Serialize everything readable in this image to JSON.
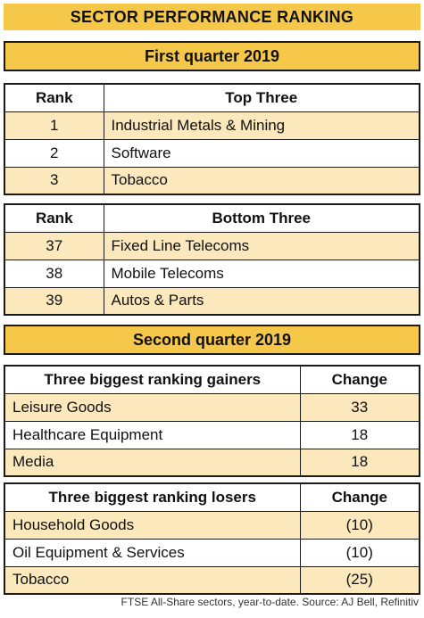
{
  "title": "SECTOR PERFORMANCE RANKING",
  "q1": {
    "heading": "First quarter 2019",
    "top": {
      "col_rank": "Rank",
      "col_label": "Top Three",
      "rows": [
        {
          "rank": "1",
          "sector": "Industrial Metals & Mining"
        },
        {
          "rank": "2",
          "sector": "Software"
        },
        {
          "rank": "3",
          "sector": "Tobacco"
        }
      ]
    },
    "bottom": {
      "col_rank": "Rank",
      "col_label": "Bottom Three",
      "rows": [
        {
          "rank": "37",
          "sector": "Fixed Line Telecoms"
        },
        {
          "rank": "38",
          "sector": "Mobile Telecoms"
        },
        {
          "rank": "39",
          "sector": "Autos & Parts"
        }
      ]
    }
  },
  "q2": {
    "heading": "Second quarter 2019",
    "gainers": {
      "col_label": "Three biggest ranking gainers",
      "col_change": "Change",
      "rows": [
        {
          "sector": "Leisure Goods",
          "change": "33"
        },
        {
          "sector": "Healthcare Equipment",
          "change": "18"
        },
        {
          "sector": "Media",
          "change": "18"
        }
      ]
    },
    "losers": {
      "col_label": "Three biggest ranking losers",
      "col_change": "Change",
      "rows": [
        {
          "sector": "Household Goods",
          "change": "(10)"
        },
        {
          "sector": "Oil Equipment & Services",
          "change": "(10)"
        },
        {
          "sector": "Tobacco",
          "change": "(25)"
        }
      ]
    }
  },
  "footer": "FTSE All-Share sectors, year-to-date. Source: AJ Bell, Refinitiv",
  "colors": {
    "accent": "#f6c84a",
    "row_tint": "#fbe8bc"
  }
}
